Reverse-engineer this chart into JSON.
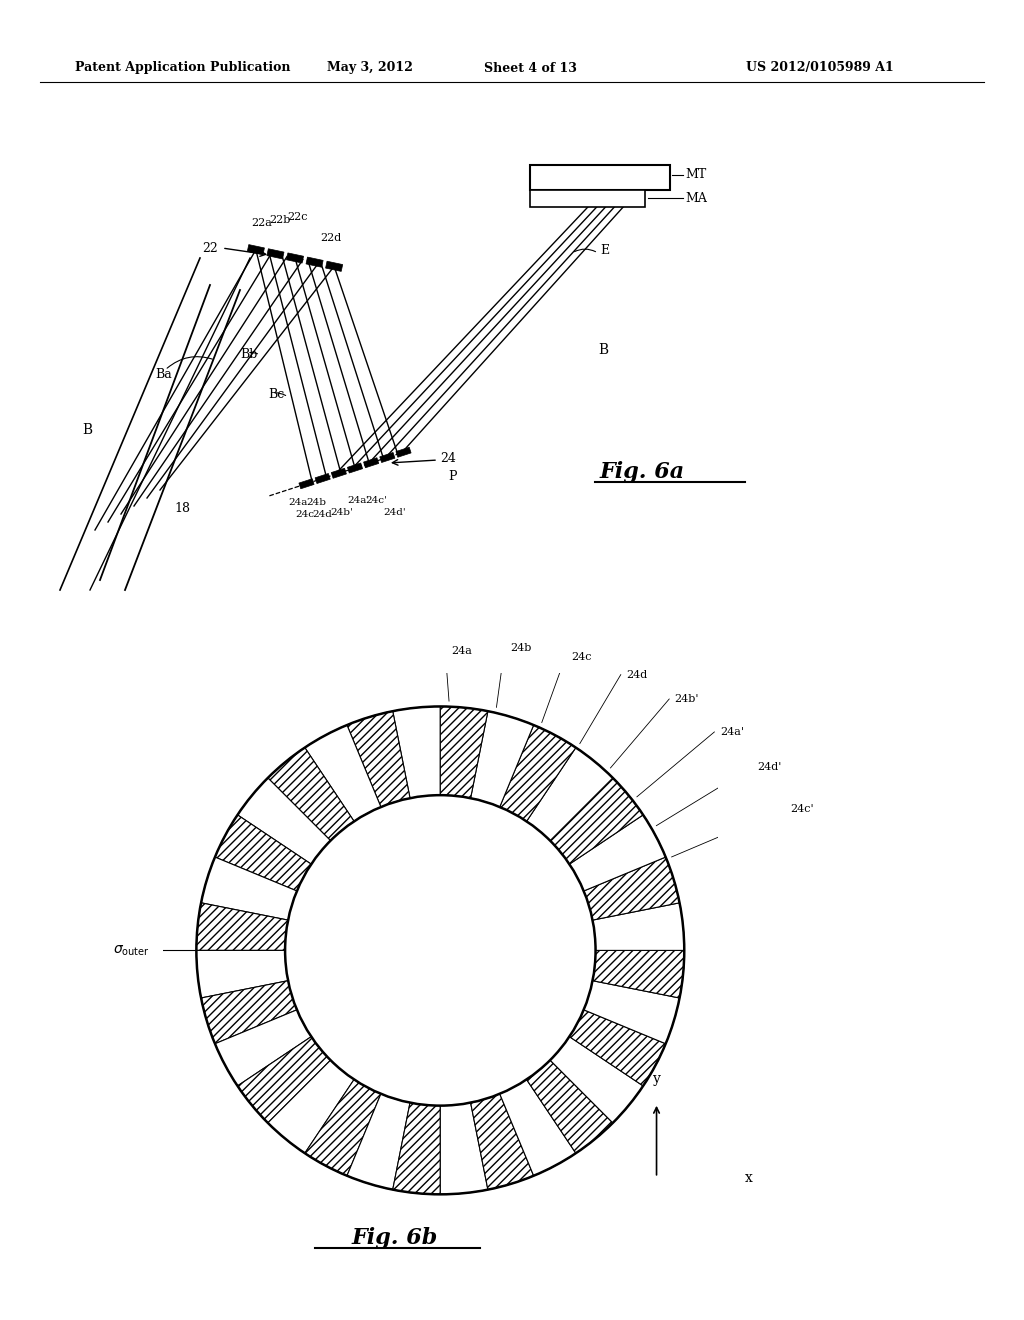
{
  "background_color": "#ffffff",
  "header_text": "Patent Application Publication",
  "header_date": "May 3, 2012",
  "header_sheet": "Sheet 4 of 13",
  "header_patent": "US 2012/0105989 A1"
}
